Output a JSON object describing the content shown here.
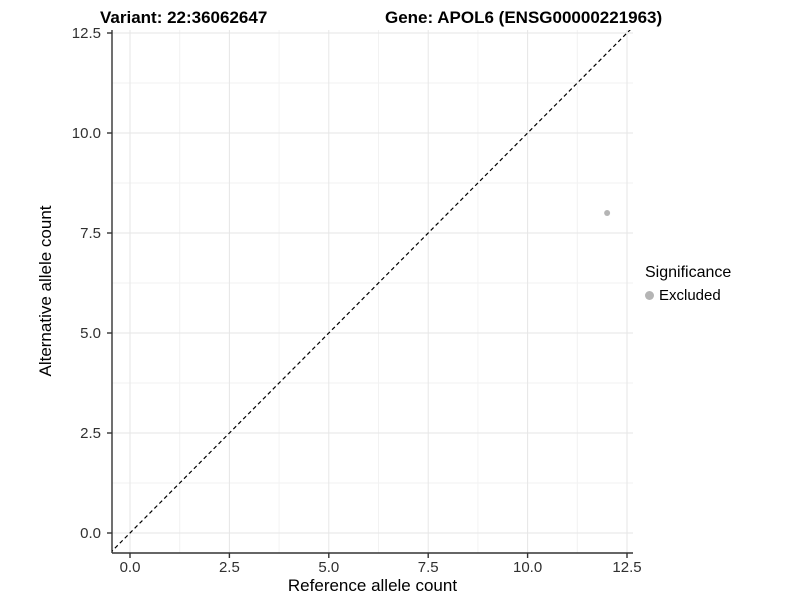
{
  "figure": {
    "title_left": "Variant: 22:36062647",
    "title_right": "Gene: APOL6 (ENSG00000221963)"
  },
  "chart_data": {
    "type": "scatter",
    "title": "Variant: 22:36062647    Gene: APOL6 (ENSG00000221963)",
    "xlabel": "Reference allele count",
    "ylabel": "Alternative allele count",
    "xlim": [
      -0.45,
      12.65
    ],
    "ylim": [
      -0.5,
      12.58
    ],
    "xticks": {
      "values": [
        0,
        2.5,
        5,
        7.5,
        10,
        12.5
      ],
      "labels": [
        "0.0",
        "2.5",
        "5.0",
        "7.5",
        "10.0",
        "12.5"
      ]
    },
    "yticks": {
      "values": [
        0,
        2.5,
        5,
        7.5,
        10,
        12.5
      ],
      "labels": [
        "0.0",
        "2.5",
        "5.0",
        "7.5",
        "10.0",
        "12.5"
      ]
    },
    "minor_ticks": [
      1.25,
      3.75,
      6.25,
      8.75,
      11.25
    ],
    "grid": {
      "major_color": "#e6e6e6",
      "minor_color": "#f2f2f2",
      "background": "#ffffff"
    },
    "axis_color": "#333333",
    "series": [
      {
        "name": "Excluded",
        "color": "#b5b5b5",
        "marker": "circle",
        "points": [
          [
            12,
            8
          ]
        ]
      }
    ],
    "reference_line": {
      "kind": "identity y=x",
      "style": "dashed",
      "color": "#000000"
    },
    "legend": {
      "title": "Significance",
      "position": "right",
      "entries": [
        {
          "label": "Excluded",
          "color": "#b5b5b5",
          "marker": "circle"
        }
      ]
    }
  }
}
